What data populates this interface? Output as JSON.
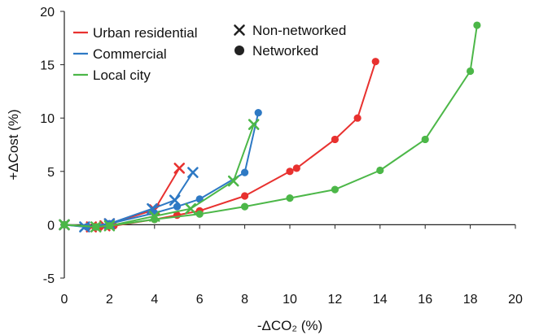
{
  "chart_data": {
    "type": "line",
    "xlabel": "-ΔCO₂ (%)",
    "ylabel": "+ΔCost (%)",
    "xlim": [
      0,
      20
    ],
    "ylim": [
      -5,
      20
    ],
    "x_ticks": [
      "0",
      "2",
      "4",
      "6",
      "8",
      "10",
      "12",
      "14",
      "16",
      "18",
      "20"
    ],
    "y_ticks": [
      "-5",
      "0",
      "5",
      "10",
      "15",
      "20"
    ],
    "grid": false,
    "legend_placement": "top-left",
    "legend": {
      "series": [
        {
          "name": "Urban residential",
          "color": "#e8312f"
        },
        {
          "name": "Commercial",
          "color": "#2e79c4"
        },
        {
          "name": "Local city",
          "color": "#4cb748"
        }
      ],
      "markers": [
        {
          "name": "Non-networked",
          "symbol": "x"
        },
        {
          "name": "Networked",
          "symbol": "circle"
        }
      ]
    },
    "series": [
      {
        "name": "Urban residential",
        "marker": "x",
        "color": "#e8312f",
        "x": [
          0,
          1.2,
          1.8,
          2.0,
          4.0,
          5.1
        ],
        "y": [
          0,
          -0.2,
          -0.1,
          0.1,
          1.4,
          5.3
        ]
      },
      {
        "name": "Urban residential",
        "marker": "circle",
        "color": "#e8312f",
        "x": [
          0,
          1.5,
          2.2,
          4.0,
          5.0,
          6.0,
          8.0,
          10.0,
          10.3,
          12.0,
          13.0,
          13.8
        ],
        "y": [
          0,
          -0.2,
          -0.1,
          0.5,
          0.9,
          1.3,
          2.7,
          5.0,
          5.3,
          8.0,
          10.0,
          15.3
        ]
      },
      {
        "name": "Commercial",
        "marker": "x",
        "color": "#2e79c4",
        "x": [
          0,
          0.9,
          2.0,
          3.9,
          4.9,
          5.7
        ],
        "y": [
          0,
          -0.2,
          0.1,
          1.5,
          2.3,
          4.9
        ]
      },
      {
        "name": "Commercial",
        "marker": "circle",
        "color": "#2e79c4",
        "x": [
          0,
          1.0,
          2.0,
          4.0,
          5.0,
          6.0,
          8.0,
          8.6
        ],
        "y": [
          0,
          -0.2,
          0.1,
          1.1,
          1.7,
          2.4,
          4.9,
          10.5
        ]
      },
      {
        "name": "Local city",
        "marker": "x",
        "color": "#4cb748",
        "x": [
          0,
          1.4,
          2.0,
          4.0,
          5.6,
          7.5,
          8.4
        ],
        "y": [
          0,
          -0.2,
          -0.1,
          0.8,
          1.5,
          4.1,
          9.4
        ]
      },
      {
        "name": "Local city",
        "marker": "circle",
        "color": "#4cb748",
        "x": [
          0,
          1.4,
          2.0,
          4.0,
          6.0,
          8.0,
          10.0,
          12.0,
          14.0,
          16.0,
          18.0,
          18.3
        ],
        "y": [
          0,
          -0.2,
          -0.1,
          0.5,
          1.0,
          1.7,
          2.5,
          3.3,
          5.1,
          8.0,
          14.4,
          18.7
        ]
      }
    ]
  }
}
